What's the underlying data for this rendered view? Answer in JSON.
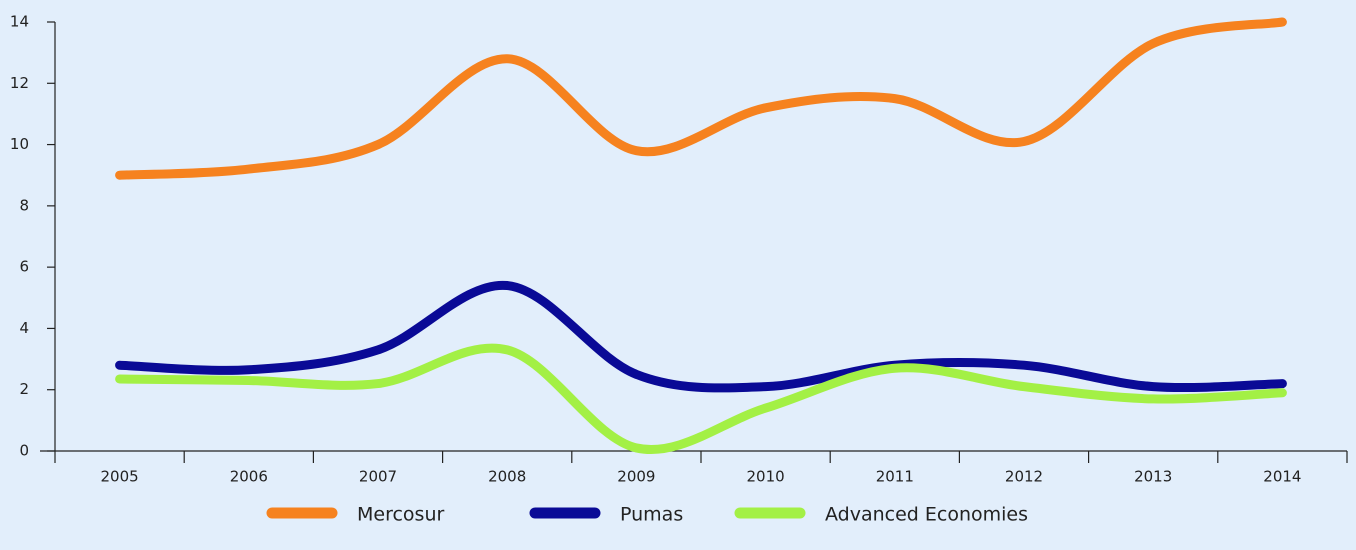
{
  "chart_data": {
    "type": "line",
    "categories": [
      "2005",
      "2006",
      "2007",
      "2008",
      "2009",
      "2010",
      "2011",
      "2012",
      "2013",
      "2014"
    ],
    "series": [
      {
        "name": "Mercosur",
        "color": "#f6821f",
        "values": [
          9.0,
          9.2,
          10.0,
          12.8,
          9.8,
          11.2,
          11.5,
          10.1,
          13.3,
          14.0
        ]
      },
      {
        "name": "Pumas",
        "color": "#0a0a96",
        "values": [
          2.8,
          2.65,
          3.3,
          5.4,
          2.5,
          2.1,
          2.8,
          2.8,
          2.1,
          2.2
        ]
      },
      {
        "name": "Advanced Economies",
        "color": "#a3f045",
        "values": [
          2.35,
          2.3,
          2.2,
          3.3,
          0.1,
          1.4,
          2.7,
          2.1,
          1.7,
          1.9
        ]
      }
    ],
    "ylim": [
      0,
      14
    ],
    "yticks": [
      0,
      2,
      4,
      6,
      8,
      10,
      12,
      14
    ],
    "grid": false,
    "legend": "bottom"
  }
}
